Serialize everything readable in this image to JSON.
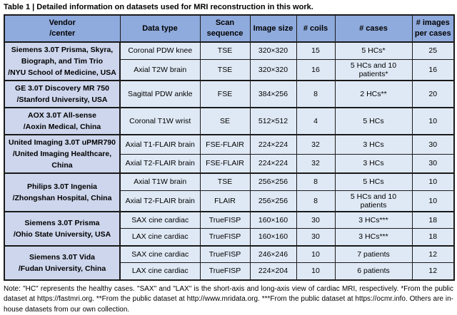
{
  "page": {
    "title": "Table 1 | Detailed information on datasets used for MRI reconstruction in this work."
  },
  "colors": {
    "header_bg": "#8faadc",
    "vendor_bg": "#cdd6ec",
    "cell_bg": "#dfe9f5",
    "border": "#1a1a1a"
  },
  "table": {
    "columns": [
      {
        "id": "vendor",
        "lines": [
          "Vendor",
          "/center"
        ]
      },
      {
        "id": "data-type",
        "lines": [
          "Data type"
        ]
      },
      {
        "id": "scan-sequence",
        "lines": [
          "Scan",
          "sequence"
        ]
      },
      {
        "id": "image-size",
        "lines": [
          "Image size"
        ]
      },
      {
        "id": "num-coils",
        "lines": [
          "# coils"
        ]
      },
      {
        "id": "num-cases",
        "lines": [
          "# cases"
        ]
      },
      {
        "id": "images-per-cases",
        "lines": [
          "# images",
          "per cases"
        ]
      }
    ],
    "groups": [
      {
        "vendor_lines": [
          "Siemens 3.0T Prisma, Skyra,",
          "Biograph, and Tim Trio",
          "/NYU School of Medicine, USA"
        ],
        "rows": [
          {
            "data_type": "Coronal PDW knee",
            "scan_sequence": "TSE",
            "image_size": "320×320",
            "num_coils": "15",
            "num_cases": "5 HCs*",
            "images_per_cases": "25"
          },
          {
            "data_type": "Axial T2W brain",
            "scan_sequence": "TSE",
            "image_size": "320×320",
            "num_coils": "16",
            "num_cases": "5 HCs and 10 patients*",
            "images_per_cases": "16"
          }
        ]
      },
      {
        "vendor_lines": [
          "GE 3.0T Discovery MR 750",
          "/Stanford University, USA"
        ],
        "rows": [
          {
            "data_type": "Sagittal PDW ankle",
            "scan_sequence": "FSE",
            "image_size": "384×256",
            "num_coils": "8",
            "num_cases": "2 HCs**",
            "images_per_cases": "20"
          }
        ]
      },
      {
        "vendor_lines": [
          "AOX 3.0T All-sense",
          "/Aoxin Medical, China"
        ],
        "rows": [
          {
            "data_type": "Coronal T1W wrist",
            "scan_sequence": "SE",
            "image_size": "512×512",
            "num_coils": "4",
            "num_cases": "5 HCs",
            "images_per_cases": "10"
          }
        ]
      },
      {
        "vendor_lines": [
          "United Imaging 3.0T uPMR790",
          "/United Imaging Healthcare, China"
        ],
        "rows": [
          {
            "data_type": "Axial T1-FLAIR brain",
            "scan_sequence": "FSE-FLAIR",
            "image_size": "224×224",
            "num_coils": "32",
            "num_cases": "3 HCs",
            "images_per_cases": "30"
          },
          {
            "data_type": "Axial T2-FLAIR brain",
            "scan_sequence": "FSE-FLAIR",
            "image_size": "224×224",
            "num_coils": "32",
            "num_cases": "3 HCs",
            "images_per_cases": "30"
          }
        ]
      },
      {
        "vendor_lines": [
          "Philips 3.0T Ingenia",
          "/Zhongshan Hospital, China"
        ],
        "rows": [
          {
            "data_type": "Axial T1W brain",
            "scan_sequence": "TSE",
            "image_size": "256×256",
            "num_coils": "8",
            "num_cases": "5 HCs",
            "images_per_cases": "10"
          },
          {
            "data_type": "Axial T2-FLAIR brain",
            "scan_sequence": "FLAIR",
            "image_size": "256×256",
            "num_coils": "8",
            "num_cases": "5 HCs and 10 patients",
            "images_per_cases": "10"
          }
        ]
      },
      {
        "vendor_lines": [
          "Siemens 3.0T Prisma",
          "/Ohio State University, USA"
        ],
        "rows": [
          {
            "data_type": "SAX cine cardiac",
            "scan_sequence": "TrueFISP",
            "image_size": "160×160",
            "num_coils": "30",
            "num_cases": "3 HCs***",
            "images_per_cases": "18"
          },
          {
            "data_type": "LAX cine cardiac",
            "scan_sequence": "TrueFISP",
            "image_size": "160×160",
            "num_coils": "30",
            "num_cases": "3 HCs***",
            "images_per_cases": "18"
          }
        ]
      },
      {
        "vendor_lines": [
          "Siemens 3.0T Vida",
          "/Fudan University, China"
        ],
        "rows": [
          {
            "data_type": "SAX cine cardiac",
            "scan_sequence": "TrueFISP",
            "image_size": "246×246",
            "num_coils": "10",
            "num_cases": "7 patients",
            "images_per_cases": "12"
          },
          {
            "data_type": "LAX cine cardiac",
            "scan_sequence": "TrueFISP",
            "image_size": "224×204",
            "num_coils": "10",
            "num_cases": "6 patients",
            "images_per_cases": "12"
          }
        ]
      }
    ]
  },
  "note": "Note: \"HC\" represents the healthy cases. \"SAX\" and \"LAX\" is the short-axis and long-axis view of cardiac MRI, respectively. *From the public dataset at https://fastmri.org. **From the public dataset at http://www.mridata.org. ***From the public dataset at https://ocmr.info. Others are in-house datasets from our own collection."
}
